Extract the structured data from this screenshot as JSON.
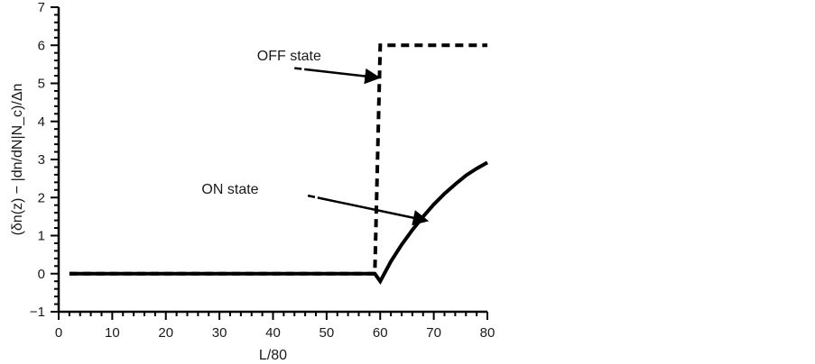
{
  "chart_data": {
    "type": "line",
    "xlabel": "L/80",
    "ylabel": "(δn(z) − |dn/dN|N_c)/Δn",
    "xlim": [
      0,
      80
    ],
    "ylim": [
      -1,
      7
    ],
    "x_ticks": [
      "0",
      "10",
      "20",
      "30",
      "40",
      "50",
      "60",
      "70",
      "80"
    ],
    "y_ticks": [
      "−1",
      "0",
      "1",
      "2",
      "3",
      "4",
      "5",
      "6",
      "7"
    ],
    "grid": false,
    "series": [
      {
        "name": "OFF state",
        "style": "dashed",
        "color": "#000000",
        "x": [
          2,
          59,
          60,
          80
        ],
        "y": [
          0,
          0,
          6,
          6
        ]
      },
      {
        "name": "ON state",
        "style": "solid",
        "color": "#000000",
        "x": [
          2,
          59,
          60,
          62,
          64,
          66,
          68,
          70,
          72,
          74,
          76,
          78,
          80
        ],
        "y": [
          0,
          0,
          -0.2,
          0.32,
          0.76,
          1.15,
          1.5,
          1.82,
          2.1,
          2.35,
          2.58,
          2.76,
          2.92
        ]
      }
    ],
    "annotations": [
      {
        "text": "OFF state",
        "text_xy": [
          43,
          5.6
        ],
        "arrow_from": [
          44,
          5.4
        ],
        "arrow_to": [
          59.5,
          5.15
        ]
      },
      {
        "text": "ON state",
        "text_xy": [
          32,
          2.1
        ],
        "arrow_from": [
          46.5,
          2.05
        ],
        "arrow_to": [
          68.5,
          1.4
        ]
      }
    ]
  }
}
